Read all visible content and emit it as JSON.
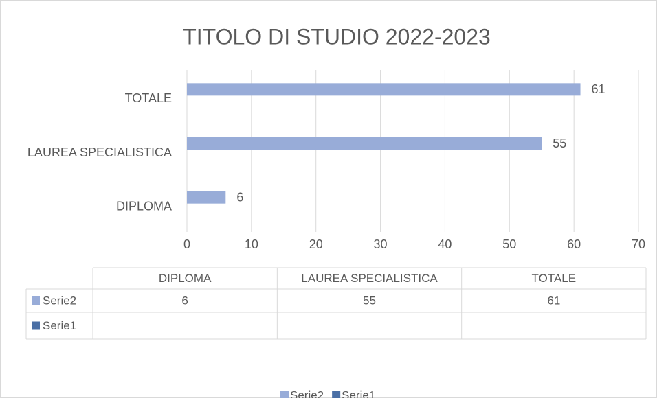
{
  "chart_data": {
    "type": "bar",
    "orientation": "horizontal",
    "title": "TITOLO DI STUDIO 2022-2023",
    "categories": [
      "DIPLOMA",
      "LAUREA SPECIALISTICA",
      "TOTALE"
    ],
    "series": [
      {
        "name": "Serie2",
        "color": "#98acd8",
        "values": [
          6,
          55,
          61
        ]
      },
      {
        "name": "Serie1",
        "color": "#4a6fa5",
        "values": [
          null,
          null,
          null
        ]
      }
    ],
    "xlim": [
      0,
      70
    ],
    "xticks": [
      0,
      10,
      20,
      30,
      40,
      50,
      60,
      70
    ],
    "grid": true,
    "data_labels": true,
    "data_table": true,
    "legend": "bottom"
  }
}
